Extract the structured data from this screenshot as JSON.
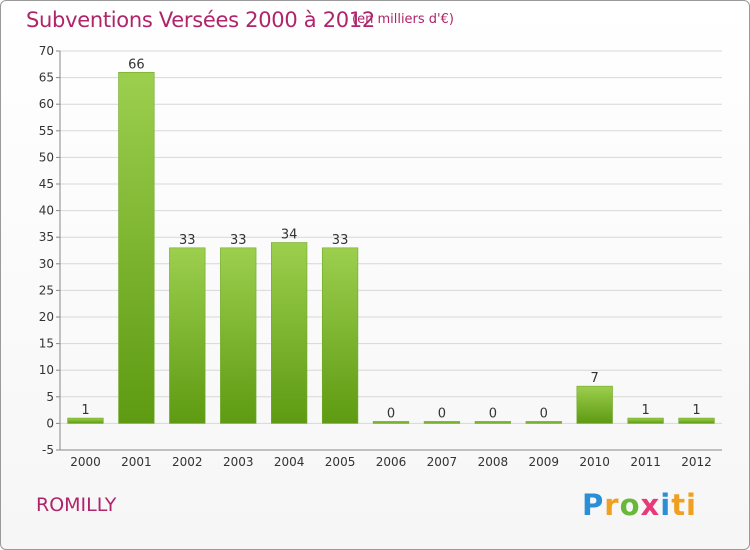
{
  "chart_data": {
    "type": "bar",
    "title": "Subventions Versées 2000 à 2012",
    "subtitle": "(en milliers d'€)",
    "categories": [
      "2000",
      "2001",
      "2002",
      "2003",
      "2004",
      "2005",
      "2006",
      "2007",
      "2008",
      "2009",
      "2010",
      "2011",
      "2012"
    ],
    "values": [
      1,
      66,
      33,
      33,
      34,
      33,
      0,
      0,
      0,
      0,
      7,
      1,
      1
    ],
    "ylim": [
      -5,
      70
    ],
    "yticks": [
      -5,
      0,
      5,
      10,
      15,
      20,
      25,
      30,
      35,
      40,
      45,
      50,
      55,
      60,
      65,
      70
    ],
    "grid": true,
    "colors": {
      "bar_light": "#9ccf4e",
      "bar_dark": "#5e9a12",
      "grid": "#d8d8d8",
      "title": "#b0246a"
    }
  },
  "commune": "ROMILLY",
  "logo": [
    "P",
    "r",
    "o",
    "x",
    "i",
    "ti"
  ]
}
